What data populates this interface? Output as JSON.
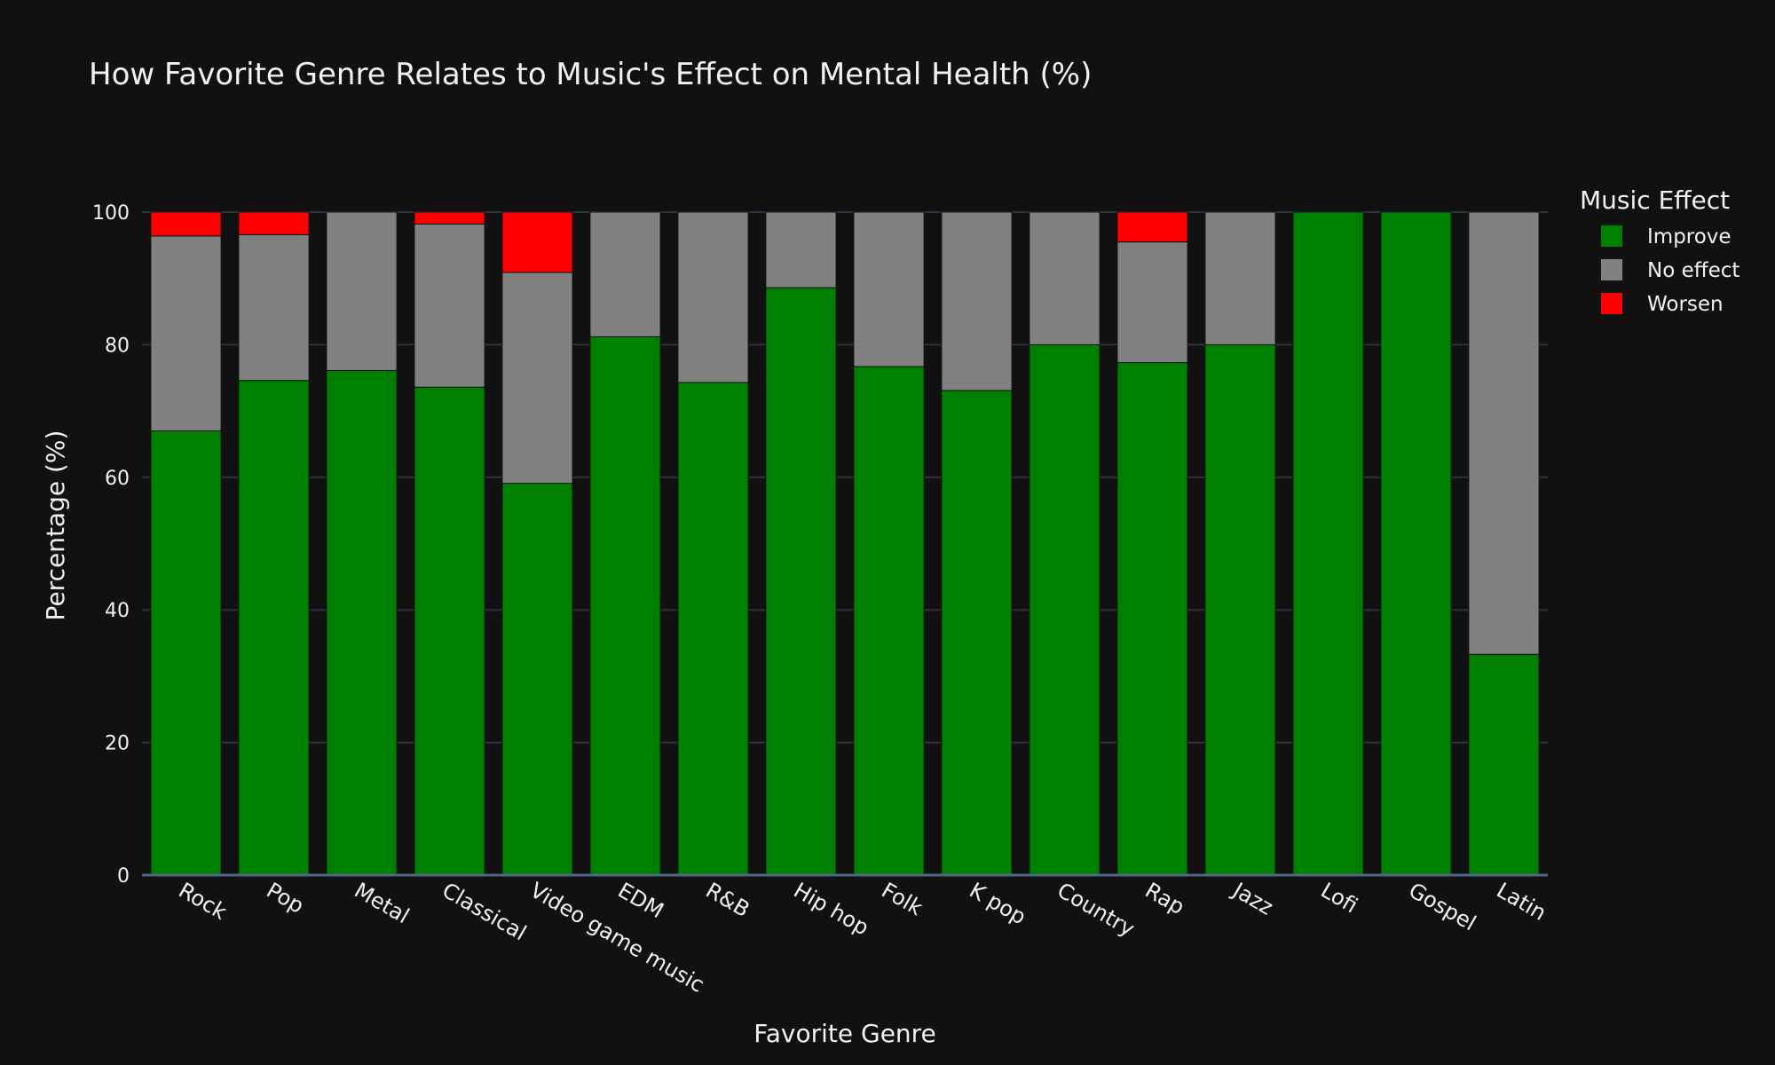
{
  "chart_data": {
    "type": "bar",
    "barmode": "stack",
    "title": "How Favorite Genre Relates to Music's Effect on Mental Health (%)",
    "xlabel": "Favorite Genre",
    "ylabel": "Percentage (%)",
    "ylim": [
      0,
      100
    ],
    "yticks": [
      0,
      20,
      40,
      60,
      80,
      100
    ],
    "grid": true,
    "legend_title": "Music Effect",
    "legend_position": "top-right",
    "categories": [
      "Rock",
      "Pop",
      "Metal",
      "Classical",
      "Video game music",
      "EDM",
      "R&B",
      "Hip hop",
      "Folk",
      "K pop",
      "Country",
      "Rap",
      "Jazz",
      "Lofi",
      "Gospel",
      "Latin"
    ],
    "series": [
      {
        "name": "Improve",
        "color": "#008000",
        "values": [
          67.0,
          74.6,
          76.1,
          73.6,
          59.1,
          81.2,
          74.3,
          88.6,
          76.7,
          73.1,
          80.0,
          77.3,
          80.0,
          100,
          100,
          33.3
        ]
      },
      {
        "name": "No effect",
        "color": "#808080",
        "values": [
          29.4,
          22.0,
          23.9,
          24.6,
          31.8,
          18.8,
          25.7,
          11.4,
          23.3,
          26.9,
          20.0,
          18.2,
          20.0,
          0,
          0,
          66.7
        ]
      },
      {
        "name": "Worsen",
        "color": "#ff0000",
        "values": [
          3.6,
          3.4,
          0,
          1.8,
          9.1,
          0,
          0,
          0,
          0,
          0,
          0,
          4.5,
          0,
          0,
          0,
          0
        ]
      }
    ]
  }
}
